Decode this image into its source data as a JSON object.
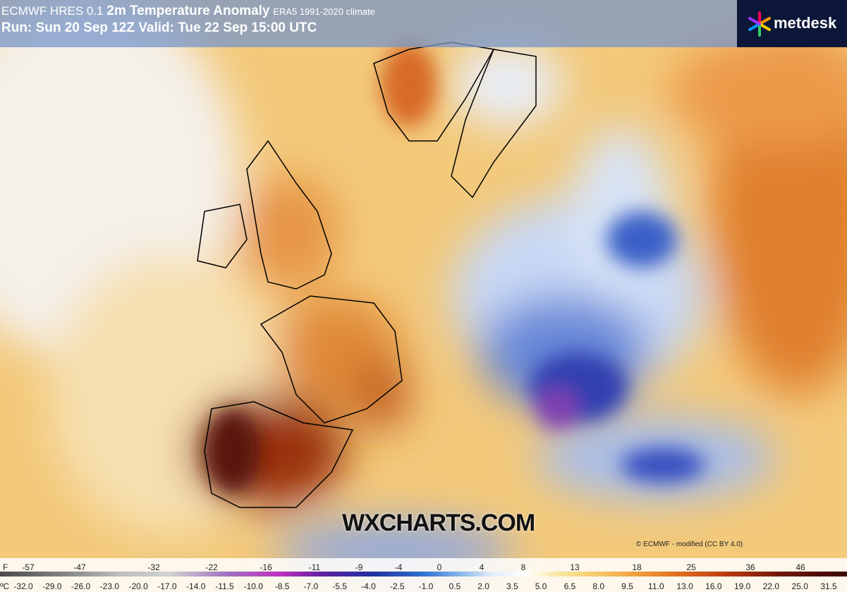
{
  "header": {
    "model": "ECMWF HRES 0.1",
    "title": "2m Temperature Anomaly",
    "climate": "ERA5 1991-2020 climate",
    "run": "Run: Sun 20 Sep 12Z Valid: Tue 22 Sep 15:00 UTC"
  },
  "logo": "metdesk",
  "watermark": "WXCHARTS.COM",
  "credit": "© ECMWF - modified (CC BY 4.0)",
  "legend": {
    "f_unit": "F",
    "f_labels": [
      "-57",
      "-47",
      "-32",
      "-22",
      "-16",
      "-11",
      "-9",
      "-4",
      "0",
      "4",
      "8",
      "13",
      "18",
      "25",
      "36",
      "46"
    ],
    "c_unit": "ºC",
    "c_labels": [
      "-32.0",
      "-29.0",
      "-26.0",
      "-23.0",
      "-20.0",
      "-17.0",
      "-14.0",
      "-11.5",
      "-10.0",
      "-8.5",
      "-7.0",
      "-5.5",
      "-4.0",
      "-2.5",
      "-1.0",
      "0.5",
      "2.0",
      "3.5",
      "5.0",
      "6.5",
      "8.0",
      "9.5",
      "11.0",
      "13.0",
      "16.0",
      "19.0",
      "22.0",
      "25.0",
      "31.5"
    ]
  }
}
